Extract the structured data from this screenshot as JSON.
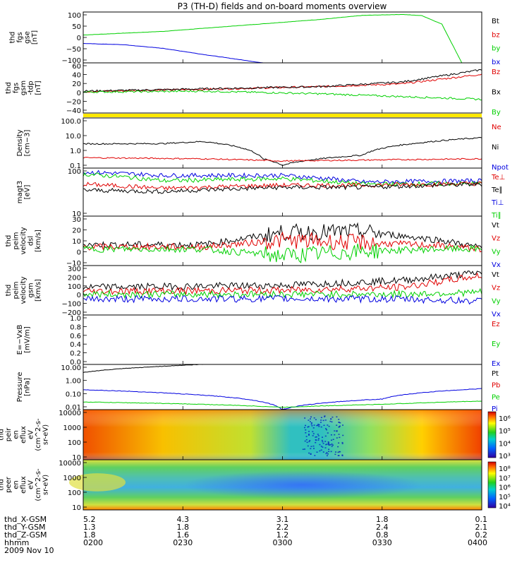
{
  "title": "P3 (TH-D) fields and on-board moments overview",
  "date": "2009 Nov 10",
  "colors": {
    "black": "#000000",
    "red": "#e00000",
    "green": "#00d000",
    "blue": "#0000e0",
    "yellow": "#ffe800"
  },
  "chart_data": [
    {
      "type": "line",
      "panel": "fgs_gse",
      "ylabel": [
        "thd",
        "fgs",
        "gse",
        "[nT]"
      ],
      "yticks": [
        "100",
        "50",
        "0",
        "−50",
        "−100"
      ],
      "ylim": [
        -100,
        110
      ],
      "legend": [
        {
          "name": "Bt",
          "color": "#000000"
        },
        {
          "name": "bz",
          "color": "#e00000"
        },
        {
          "name": "by",
          "color": "#00d000"
        },
        {
          "name": "bx",
          "color": "#0000e0"
        }
      ],
      "series": [
        {
          "name": "by",
          "color": "#00d000",
          "t": [
            0,
            0.2,
            0.4,
            0.6,
            0.7,
            0.8,
            0.85,
            0.9,
            0.95
          ],
          "v": [
            15,
            30,
            55,
            80,
            96,
            100,
            95,
            60,
            -100
          ]
        },
        {
          "name": "bx",
          "color": "#0000e0",
          "t": [
            0,
            0.1,
            0.2,
            0.3,
            0.45
          ],
          "v": [
            -20,
            -25,
            -40,
            -65,
            -100
          ]
        }
      ]
    },
    {
      "type": "line",
      "panel": "fgs_gsm",
      "ylabel": [
        "thd",
        "fgs",
        "gsm",
        "-tdp",
        "[nT]"
      ],
      "yticks": [
        "60",
        "40",
        "20",
        "0",
        "−20",
        "−40"
      ],
      "ylim": [
        -50,
        60
      ],
      "legend": [
        {
          "name": "Bz",
          "color": "#e00000"
        },
        {
          "name": "Bx",
          "color": "#000000"
        },
        {
          "name": "By",
          "color": "#00d000"
        }
      ],
      "series": [
        {
          "name": "Bz",
          "color": "#e00000",
          "t": [
            0,
            0.3,
            0.6,
            0.8,
            1.0
          ],
          "v": [
            -3,
            2,
            8,
            14,
            35
          ]
        },
        {
          "name": "Bx",
          "color": "#000000",
          "t": [
            0,
            0.3,
            0.6,
            0.8,
            1.0
          ],
          "v": [
            -2,
            3,
            8,
            18,
            45
          ]
        },
        {
          "name": "By",
          "color": "#00d000",
          "t": [
            0,
            0.3,
            0.6,
            0.8,
            1.0
          ],
          "v": [
            -4,
            -2,
            -8,
            -14,
            -20
          ]
        }
      ]
    },
    {
      "type": "line",
      "panel": "density",
      "scale": "log",
      "ylabel": [
        "Density",
        "[cm−3]"
      ],
      "yticks": [
        "100.0",
        "10.0",
        "1.0",
        "0.1"
      ],
      "ylim": [
        0.08,
        100
      ],
      "legend": [
        {
          "name": "Ne",
          "color": "#e00000"
        },
        {
          "name": "Ni",
          "color": "#000000"
        },
        {
          "name": "Npot",
          "color": "#0000e0"
        }
      ],
      "series": [
        {
          "name": "Ni",
          "color": "#000000",
          "t": [
            0,
            0.2,
            0.3,
            0.45,
            0.5,
            0.7,
            0.85,
            1.0
          ],
          "v": [
            2.5,
            2.6,
            3.5,
            0.3,
            0.12,
            0.5,
            3,
            6
          ]
        },
        {
          "name": "Ne",
          "color": "#e00000",
          "t": [
            0,
            0.3,
            0.5,
            0.7,
            1.0
          ],
          "v": [
            0.35,
            0.3,
            0.22,
            0.25,
            0.3
          ]
        }
      ]
    },
    {
      "type": "line",
      "panel": "temperature",
      "scale": "log",
      "ylabel": [
        "magt3",
        "[eV]"
      ],
      "yticks": [
        "100",
        "10"
      ],
      "ylim": [
        10,
        1500
      ],
      "legend": [
        {
          "name": "Te⊥",
          "color": "#e00000"
        },
        {
          "name": "Te∥",
          "color": "#000000"
        },
        {
          "name": "Ti⊥",
          "color": "#0000e0"
        },
        {
          "name": "Ti∥",
          "color": "#00d000"
        }
      ],
      "series": [
        {
          "name": "Ti⊥",
          "color": "#0000e0",
          "t": [
            0,
            0.2,
            0.5,
            0.7,
            1.0
          ],
          "v": [
            1000,
            700,
            700,
            350,
            400
          ]
        },
        {
          "name": "Ti∥",
          "color": "#00d000",
          "t": [
            0,
            0.2,
            0.5,
            0.7,
            1.0
          ],
          "v": [
            800,
            400,
            500,
            280,
            300
          ]
        },
        {
          "name": "Te⊥",
          "color": "#e00000",
          "t": [
            0,
            0.2,
            0.5,
            0.7,
            1.0
          ],
          "v": [
            280,
            180,
            250,
            250,
            300
          ]
        },
        {
          "name": "Te∥",
          "color": "#000000",
          "t": [
            0,
            0.2,
            0.5,
            0.7,
            1.0
          ],
          "v": [
            150,
            130,
            200,
            200,
            280
          ]
        }
      ]
    },
    {
      "type": "line",
      "panel": "velocity_dsl",
      "ylabel": [
        "thd",
        "peim",
        "velocity",
        "dsl",
        "[km/s]"
      ],
      "yticks": [
        "30",
        "20",
        "10",
        "0",
        "−10"
      ],
      "ylim": [
        -15,
        30
      ],
      "legend": [
        {
          "name": "Vt",
          "color": "#000000"
        },
        {
          "name": "Vz",
          "color": "#e00000"
        },
        {
          "name": "Vy",
          "color": "#00d000"
        },
        {
          "name": "Vx",
          "color": "#0000e0"
        }
      ],
      "series": [
        {
          "name": "Vt",
          "color": "#000000",
          "t": [
            0,
            0.3,
            0.5,
            0.7,
            0.9,
            1.0
          ],
          "v": [
            4,
            4,
            15,
            16,
            8,
            1
          ]
        },
        {
          "name": "Vz",
          "color": "#e00000",
          "t": [
            0,
            0.3,
            0.5,
            0.7,
            0.9,
            1.0
          ],
          "v": [
            2,
            2,
            8,
            6,
            3,
            0
          ]
        },
        {
          "name": "Vy",
          "color": "#00d000",
          "t": [
            0,
            0.3,
            0.5,
            0.7,
            0.9,
            1.0
          ],
          "v": [
            0,
            0,
            -6,
            -2,
            0,
            0
          ]
        }
      ]
    },
    {
      "type": "line",
      "panel": "velocity_gsm",
      "ylabel": [
        "thd",
        "peim",
        "velocity",
        "gsm",
        "[km/s]"
      ],
      "yticks": [
        "300",
        "200",
        "100",
        "0",
        "−100",
        "−200"
      ],
      "ylim": [
        -200,
        300
      ],
      "legend": [
        {
          "name": "Vt",
          "color": "#000000"
        },
        {
          "name": "Vz",
          "color": "#e00000"
        },
        {
          "name": "Vy",
          "color": "#00d000"
        },
        {
          "name": "Vx",
          "color": "#0000e0"
        }
      ],
      "series": [
        {
          "name": "Vt",
          "color": "#000000",
          "t": [
            0,
            0.5,
            0.8,
            1.0
          ],
          "v": [
            80,
            100,
            150,
            230
          ]
        },
        {
          "name": "Vz",
          "color": "#e00000",
          "t": [
            0,
            0.5,
            0.8,
            1.0
          ],
          "v": [
            40,
            50,
            80,
            200
          ]
        },
        {
          "name": "Vy",
          "color": "#00d000",
          "t": [
            0,
            0.5,
            0.8,
            1.0
          ],
          "v": [
            10,
            10,
            10,
            30
          ]
        },
        {
          "name": "Vx",
          "color": "#0000e0",
          "t": [
            0,
            0.5,
            0.8,
            1.0
          ],
          "v": [
            -40,
            -35,
            -40,
            -60
          ]
        }
      ]
    },
    {
      "type": "line",
      "panel": "efield",
      "ylabel": [
        "E=−VxB",
        "[mV/m]"
      ],
      "yticks": [
        "1.0",
        "0.8",
        "0.6",
        "0.4",
        "0.2",
        "0.0"
      ],
      "ylim": [
        0,
        1
      ],
      "legend": [
        {
          "name": "Ez",
          "color": "#e00000"
        },
        {
          "name": "Ey",
          "color": "#00d000"
        },
        {
          "name": "Ex",
          "color": "#0000e0"
        }
      ],
      "series": []
    },
    {
      "type": "line",
      "panel": "pressure",
      "scale": "log",
      "ylabel": [
        "Pressure",
        "[nPa]"
      ],
      "yticks": [
        "10.00",
        "1.00",
        "0.10",
        "0.01"
      ],
      "ylim": [
        0.008,
        20
      ],
      "legend": [
        {
          "name": "Pt",
          "color": "#000000"
        },
        {
          "name": "Pb",
          "color": "#e00000"
        },
        {
          "name": "Pe",
          "color": "#00d000"
        },
        {
          "name": "Pi",
          "color": "#0000e0"
        }
      ],
      "series": [
        {
          "name": "Pt",
          "color": "#000000",
          "t": [
            0,
            0.15,
            0.3
          ],
          "v": [
            5,
            12,
            20
          ]
        },
        {
          "name": "Pi",
          "color": "#0000e0",
          "t": [
            0,
            0.25,
            0.5,
            0.75,
            1.0
          ],
          "v": [
            0.25,
            0.12,
            0.008,
            0.05,
            0.3
          ]
        },
        {
          "name": "Pe",
          "color": "#00d000",
          "t": [
            0,
            0.3,
            0.5,
            0.75,
            1.0
          ],
          "v": [
            0.03,
            0.02,
            0.012,
            0.02,
            0.035
          ]
        }
      ]
    },
    {
      "type": "heatmap",
      "panel": "peir",
      "ylabel": [
        "thd",
        "peir",
        "en",
        "eflux",
        "eV",
        "(cm^2-s-",
        "sr-eV)"
      ],
      "yticks": [
        "10000",
        "1000",
        "100",
        "10"
      ],
      "colorbar": [
        "10⁶",
        "10⁵",
        "10⁴",
        "10³"
      ]
    },
    {
      "type": "heatmap",
      "panel": "peer",
      "ylabel": [
        "thd",
        "peer",
        "en",
        "eflux",
        "eV",
        "(cm^2-s-",
        "sr-eV)"
      ],
      "yticks": [
        "10000",
        "1000",
        "100",
        "10"
      ],
      "colorbar": [
        "10⁸",
        "10⁷",
        "10⁶",
        "10⁵",
        "10⁴"
      ]
    }
  ],
  "xaxis": {
    "rows": [
      {
        "label": "thd_X-GSM",
        "values": [
          "5.2",
          "4.3",
          "3.1",
          "1.8",
          "0.1"
        ]
      },
      {
        "label": "thd_Y-GSM",
        "values": [
          "1.3",
          "1.8",
          "2.2",
          "2.4",
          "2.1"
        ]
      },
      {
        "label": "thd_Z-GSM",
        "values": [
          "1.8",
          "1.6",
          "1.2",
          "0.8",
          "0.2"
        ]
      },
      {
        "label": "hhmm",
        "values": [
          "0200",
          "0230",
          "0300",
          "0330",
          "0400"
        ]
      }
    ]
  }
}
